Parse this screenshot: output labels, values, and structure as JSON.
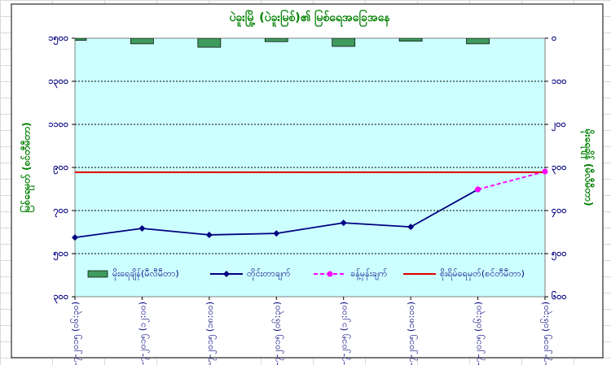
{
  "chart_data": {
    "type": "combo",
    "title": "ပဲခူးမြို့ (ပဲခူးမြစ်)၏ မြစ်ရေအခြေအနေ",
    "y_label": "မြစ်ရေမှတ် (စင်တီမီတာ)",
    "y2_label": "မိုးရေချိန် (မီလီမီတာ)",
    "categories": [
      "၂၁-၇-၂၀၁၅ (၀၆:၃၀)",
      "၂၁-၇-၂၀၁၅ (၁၂:၀၀)",
      "၂၁-၇-၂၀၁၅ (၁၈:၀၀)",
      "၂၂-၇-၂၀၁၅ (၀၆:၃၀)",
      "၂၂-၇-၂၀၁၅ (၁၂:၀၀)",
      "၂၂-၇-၂၀၁၅ (၁၈:၀၀)",
      "၂၃-၇-၂၀၁၅ (၀၆:၃၀)",
      "၂၄-၇-၂၀၁၅ (၀၆:၃၀)"
    ],
    "series": [
      {
        "name": "မိုးရေချိန်(မီလီမီတာ)",
        "kind": "bar",
        "axis": "y2",
        "color": "#3f9a5e",
        "values": [
          5,
          13,
          21,
          8,
          19,
          7,
          13,
          null
        ]
      },
      {
        "name": "တိုင်းတာချက်",
        "kind": "line",
        "marker": "diamond",
        "color": "#000080",
        "values": [
          575,
          617,
          587,
          594,
          643,
          624,
          798,
          null
        ]
      },
      {
        "name": "ခန့်မှန်းချက်",
        "kind": "line",
        "marker": "circle",
        "dashed": true,
        "color": "#ff00ff",
        "values": [
          null,
          null,
          null,
          null,
          null,
          null,
          798,
          881
        ]
      },
      {
        "name": "စိုးရိမ်ရေမှတ်(စင်တီမီတာ)",
        "kind": "line",
        "color": "#e00000",
        "values": [
          878,
          878,
          878,
          878,
          878,
          878,
          878,
          878
        ]
      }
    ],
    "ylim": [
      300,
      1500
    ],
    "yticks": [
      {
        "value": 300,
        "label": "၃၀၀"
      },
      {
        "value": 500,
        "label": "၅၀၀"
      },
      {
        "value": 700,
        "label": "၇၀၀"
      },
      {
        "value": 900,
        "label": "၉၀၀"
      },
      {
        "value": 1100,
        "label": "၁၁၀၀"
      },
      {
        "value": 1300,
        "label": "၁၃၀၀"
      },
      {
        "value": 1500,
        "label": "၁၅၀၀"
      }
    ],
    "y2lim": [
      600,
      0
    ],
    "y2ticks": [
      {
        "value": 600,
        "label": "၆၀၀"
      },
      {
        "value": 500,
        "label": "၅၀၀"
      },
      {
        "value": 400,
        "label": "၄၀၀"
      },
      {
        "value": 300,
        "label": "၃၀၀"
      },
      {
        "value": 200,
        "label": "၂၀၀"
      },
      {
        "value": 100,
        "label": "၁၀၀"
      },
      {
        "value": 0,
        "label": "၀"
      }
    ],
    "grid": true,
    "plot_color": "#ccffff"
  }
}
